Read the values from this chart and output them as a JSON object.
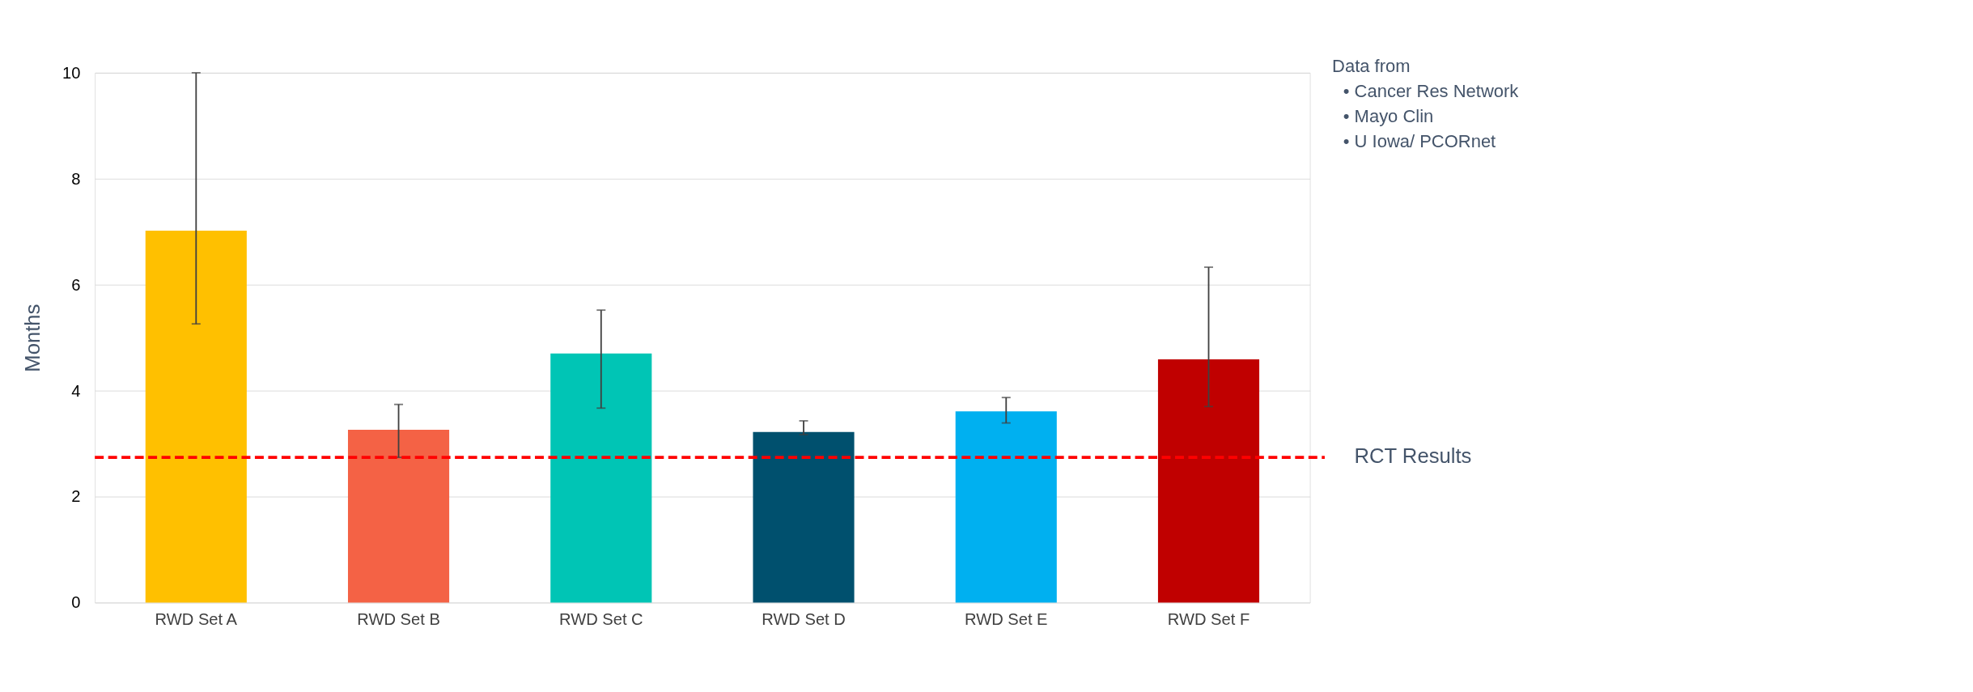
{
  "chart_data": {
    "type": "bar",
    "ylabel": "Months",
    "categories": [
      "RWD Set A",
      "RWD Set B",
      "RWD Set C",
      "RWD Set D",
      "RWD Set E",
      "RWD Set F"
    ],
    "values": [
      7.02,
      3.26,
      4.7,
      3.22,
      3.61,
      4.59
    ],
    "colors": [
      "#ffc000",
      "#f46245",
      "#00c5b5",
      "#00506e",
      "#00b0f0",
      "#c00000"
    ],
    "errors": [
      [
        5.26,
        10.0
      ],
      [
        2.74,
        3.74
      ],
      [
        3.67,
        5.52
      ],
      [
        3.17,
        3.43
      ],
      [
        3.39,
        3.87
      ],
      [
        3.7,
        6.33
      ]
    ],
    "ylim": [
      0,
      10
    ],
    "yticks": [
      0,
      2,
      4,
      6,
      8,
      10
    ],
    "grid": "y",
    "ref_lines": [
      {
        "axis": "y",
        "value": 2.74,
        "label": "RCT Results",
        "color": "#ff0000",
        "line_style": "dashed"
      }
    ],
    "annotations": [
      "Data from",
      "•   Cancer Res Network",
      "•   Mayo Clin",
      "•   U Iowa/ PCORnet"
    ]
  }
}
